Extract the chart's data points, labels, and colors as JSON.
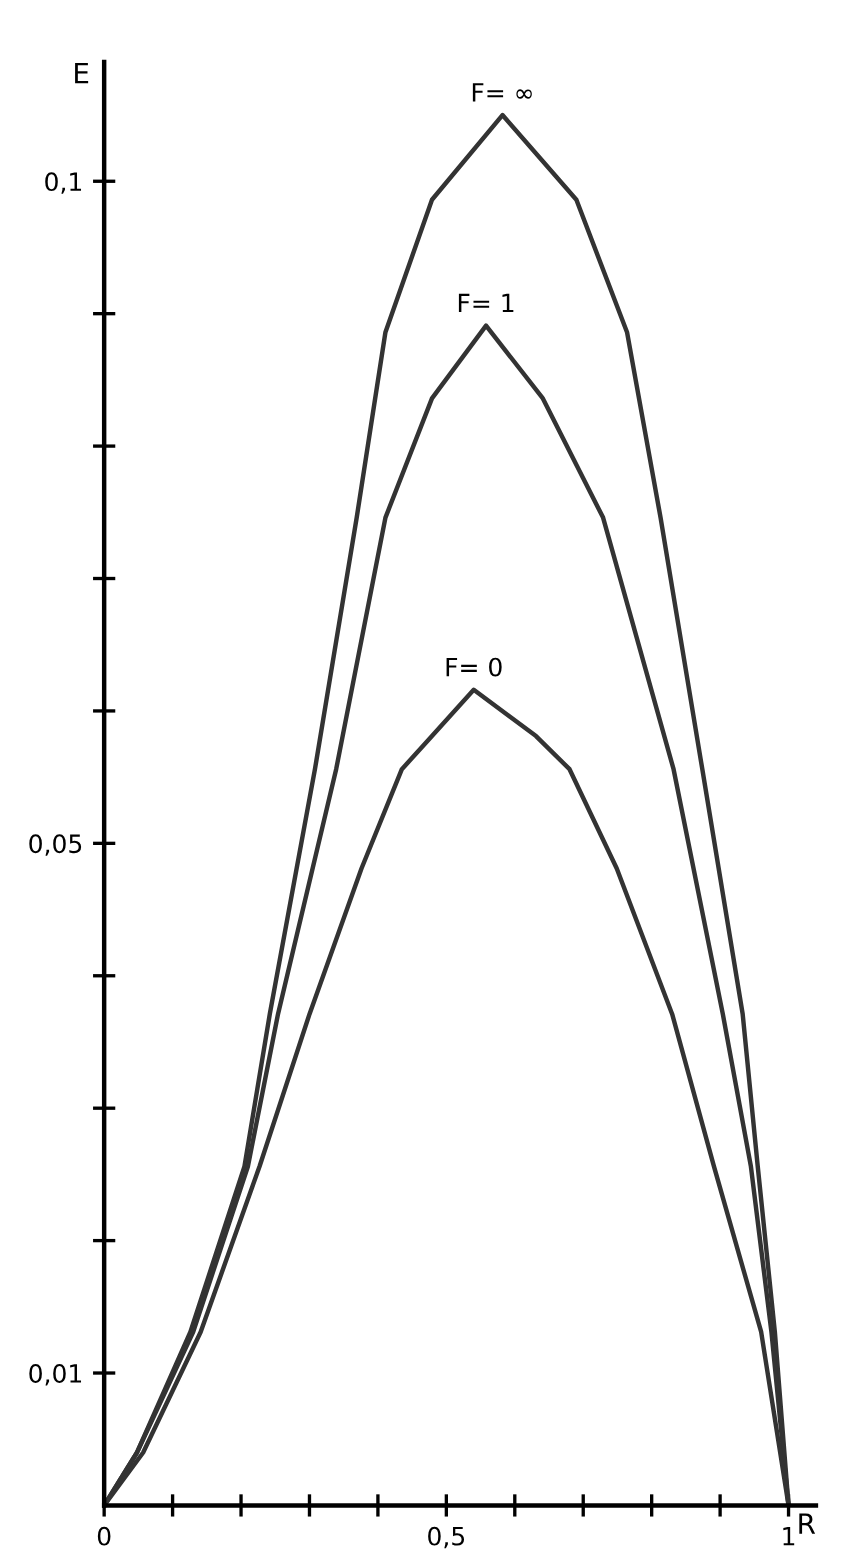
{
  "chart_data": {
    "type": "line",
    "xlabel": "R",
    "ylabel": "E",
    "xlim": [
      0,
      1.04
    ],
    "ylim": [
      0,
      0.109
    ],
    "xticks": [
      {
        "value": 0,
        "label": "0"
      },
      {
        "value": 0.1,
        "label": null
      },
      {
        "value": 0.2,
        "label": null
      },
      {
        "value": 0.3,
        "label": null
      },
      {
        "value": 0.4,
        "label": null
      },
      {
        "value": 0.5,
        "label": "0,5"
      },
      {
        "value": 0.6,
        "label": null
      },
      {
        "value": 0.7,
        "label": null
      },
      {
        "value": 0.8,
        "label": null
      },
      {
        "value": 0.9,
        "label": null
      },
      {
        "value": 1,
        "label": "1"
      }
    ],
    "yticks": [
      {
        "value": 0.01,
        "label": "0,01"
      },
      {
        "value": 0.02,
        "label": null
      },
      {
        "value": 0.03,
        "label": null
      },
      {
        "value": 0.04,
        "label": null
      },
      {
        "value": 0.05,
        "label": "0,05"
      },
      {
        "value": 0.06,
        "label": null
      },
      {
        "value": 0.07,
        "label": null
      },
      {
        "value": 0.08,
        "label": null
      },
      {
        "value": 0.09,
        "label": null
      },
      {
        "value": 0.1,
        "label": "0,1"
      }
    ],
    "grid": false,
    "marker": "none",
    "line_style": "solid",
    "series": [
      {
        "color": "#333333",
        "x": [
          0,
          0.048,
          0.126,
          0.205,
          0.242,
          0.308,
          0.369,
          0.411,
          0.479,
          0.582,
          0.69,
          0.764,
          0.813,
          0.874,
          0.933,
          0.955,
          0.98,
          1
        ],
        "values": [
          0,
          0.004,
          0.0131,
          0.0256,
          0.0371,
          0.0556,
          0.0746,
          0.0886,
          0.0986,
          0.105,
          0.0986,
          0.0886,
          0.0746,
          0.0556,
          0.0371,
          0.0256,
          0.0131,
          0
        ]
      },
      {
        "color": "#333333",
        "x": [
          0,
          0.048,
          0.13,
          0.21,
          0.254,
          0.339,
          0.411,
          0.479,
          0.558,
          0.641,
          0.729,
          0.832,
          0.904,
          0.945,
          0.975,
          1
        ],
        "values": [
          0,
          0.004,
          0.0131,
          0.0256,
          0.0371,
          0.0556,
          0.0746,
          0.0836,
          0.0891,
          0.0836,
          0.0746,
          0.0556,
          0.0371,
          0.0256,
          0.0131,
          0
        ]
      },
      {
        "color": "#333333",
        "x": [
          0,
          0.057,
          0.141,
          0.227,
          0.3,
          0.376,
          0.435,
          0.479,
          0.54,
          0.631,
          0.68,
          0.749,
          0.83,
          0.891,
          0.96,
          1
        ],
        "values": [
          0,
          0.004,
          0.0131,
          0.0256,
          0.0371,
          0.0481,
          0.0556,
          0.0581,
          0.0616,
          0.0581,
          0.0556,
          0.0481,
          0.0371,
          0.0256,
          0.0131,
          0
        ]
      }
    ],
    "annotations": [
      {
        "text": "F= ∞",
        "x": 0.582,
        "y": 0.105
      },
      {
        "text": "F= 1",
        "x": 0.558,
        "y": 0.0891
      },
      {
        "text": "F= 0",
        "x": 0.54,
        "y": 0.0616
      }
    ]
  }
}
